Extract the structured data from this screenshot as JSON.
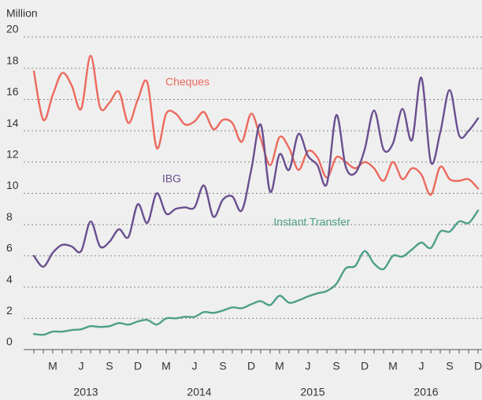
{
  "chart_data": {
    "type": "line",
    "y_label": "Million",
    "categories": [
      null,
      null,
      "M",
      null,
      null,
      "J",
      null,
      null,
      "S",
      null,
      null,
      "D",
      null,
      null,
      "M",
      null,
      null,
      "J",
      null,
      null,
      "S",
      null,
      null,
      "D",
      null,
      null,
      "M",
      null,
      null,
      "J",
      null,
      null,
      "S",
      null,
      null,
      "D",
      null,
      null,
      "M",
      null,
      null,
      "J",
      null,
      null,
      "S",
      null,
      null,
      "D"
    ],
    "years": [
      "2013",
      "2014",
      "2015",
      "2016"
    ],
    "ylim": [
      0,
      20
    ],
    "yticks": [
      0,
      2,
      4,
      6,
      8,
      10,
      12,
      14,
      16,
      18,
      20
    ],
    "grid": true,
    "series": [
      {
        "name": "Cheques",
        "color": "#ec6a5e",
        "values": [
          17.8,
          14.7,
          16.3,
          17.7,
          16.9,
          15.4,
          18.8,
          15.5,
          15.8,
          16.5,
          14.5,
          16.0,
          17.1,
          12.9,
          15.1,
          15.1,
          14.4,
          14.6,
          15.2,
          14.1,
          14.7,
          14.5,
          13.3,
          15.1,
          13.5,
          11.8,
          13.6,
          12.9,
          11.5,
          12.7,
          12.3,
          11.0,
          12.3,
          12.0,
          11.6,
          12.0,
          11.6,
          10.8,
          12.0,
          10.9,
          11.6,
          11.2,
          9.9,
          11.7,
          10.9,
          10.8,
          10.9,
          10.3
        ]
      },
      {
        "name": "IBG",
        "color": "#6a4f8f",
        "values": [
          6.0,
          5.3,
          6.2,
          6.7,
          6.6,
          6.3,
          8.2,
          6.6,
          6.9,
          7.7,
          7.2,
          9.3,
          8.1,
          10.0,
          8.7,
          9.0,
          9.1,
          9.1,
          10.5,
          8.5,
          9.6,
          9.8,
          8.9,
          11.5,
          14.4,
          10.1,
          12.5,
          11.5,
          13.8,
          12.4,
          11.8,
          10.6,
          15.0,
          11.7,
          11.3,
          12.8,
          15.3,
          12.8,
          13.2,
          15.4,
          13.4,
          17.4,
          12.0,
          13.9,
          16.6,
          13.7,
          14.0,
          14.8
        ]
      },
      {
        "name": "Instant Transfer",
        "color": "#4e9f8a",
        "values": [
          1.0,
          0.95,
          1.15,
          1.15,
          1.25,
          1.3,
          1.5,
          1.45,
          1.5,
          1.7,
          1.6,
          1.8,
          1.9,
          1.6,
          2.0,
          2.0,
          2.1,
          2.1,
          2.4,
          2.35,
          2.5,
          2.7,
          2.65,
          2.9,
          3.1,
          2.85,
          3.45,
          3.0,
          3.15,
          3.4,
          3.6,
          3.75,
          4.2,
          5.2,
          5.35,
          6.3,
          5.5,
          5.15,
          6.0,
          5.95,
          6.4,
          6.85,
          6.5,
          7.55,
          7.55,
          8.2,
          8.1,
          8.9
        ]
      }
    ]
  }
}
